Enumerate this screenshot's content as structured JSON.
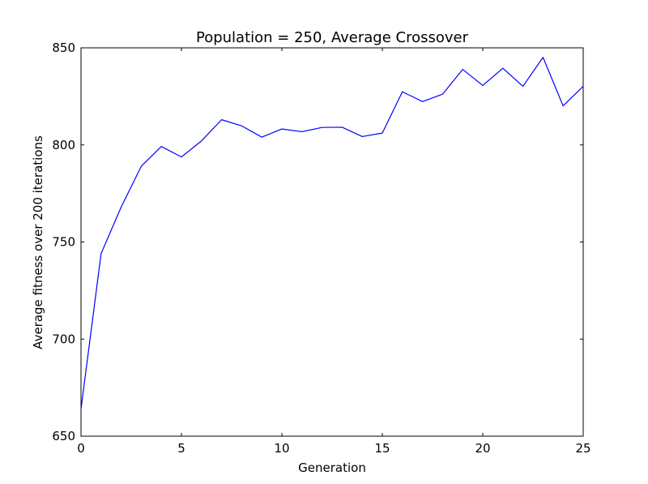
{
  "chart_data": {
    "type": "line",
    "title": "Population = 250, Average Crossover",
    "xlabel": "Generation",
    "ylabel": "Average fitness over 200 iterations",
    "xlim": [
      0,
      25
    ],
    "ylim": [
      650,
      850
    ],
    "xticks": [
      0,
      5,
      10,
      15,
      20,
      25
    ],
    "yticks": [
      650,
      700,
      750,
      800,
      850
    ],
    "grid": false,
    "line_color": "#0000ff",
    "series": [
      {
        "x": [
          0,
          1,
          2,
          3,
          4,
          5,
          6,
          7,
          8,
          9,
          10,
          11,
          12,
          13,
          14,
          15,
          16,
          17,
          18,
          19,
          20,
          21,
          22,
          23,
          24,
          25
        ],
        "values": [
          664,
          744,
          768,
          789,
          799.2,
          793.8,
          802.1,
          813.0,
          809.8,
          804.0,
          808.2,
          806.8,
          809.0,
          809.1,
          804.3,
          806.1,
          827.4,
          822.3,
          826.1,
          838.9,
          830.6,
          839.5,
          830.2,
          845.1,
          820.1,
          830.2
        ]
      }
    ]
  }
}
